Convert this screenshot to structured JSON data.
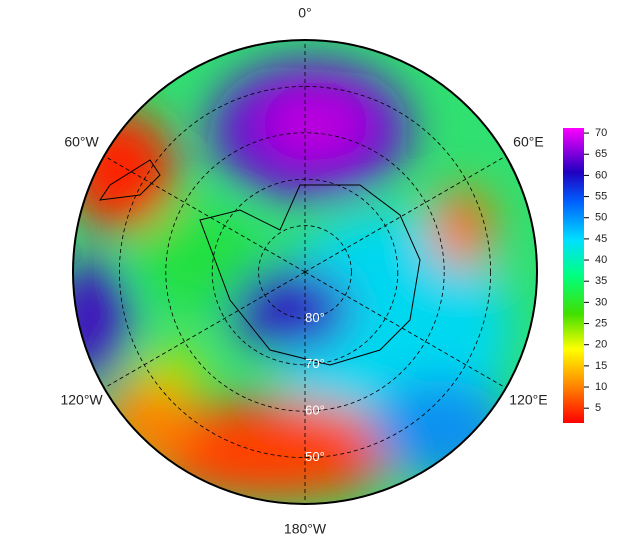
{
  "chart_data": {
    "type": "polar-map",
    "meridians": [
      {
        "value": 0,
        "label": "0°"
      },
      {
        "value": 60,
        "label": "60°E"
      },
      {
        "value": 120,
        "label": "120°E"
      },
      {
        "value": 180,
        "label": "180°W"
      },
      {
        "value": -120,
        "label": "120°W"
      },
      {
        "value": -60,
        "label": "60°W"
      }
    ],
    "parallels": [
      {
        "value": 80,
        "label": "80°"
      },
      {
        "value": 70,
        "label": "70°"
      },
      {
        "value": 60,
        "label": "60°"
      },
      {
        "value": 50,
        "label": "50°"
      }
    ],
    "colorbar_lim": [
      1.5,
      71.2
    ],
    "colorbar_ticks": [
      5,
      10,
      15,
      20,
      25,
      30,
      35,
      40,
      45,
      50,
      55,
      60,
      65,
      70
    ]
  }
}
